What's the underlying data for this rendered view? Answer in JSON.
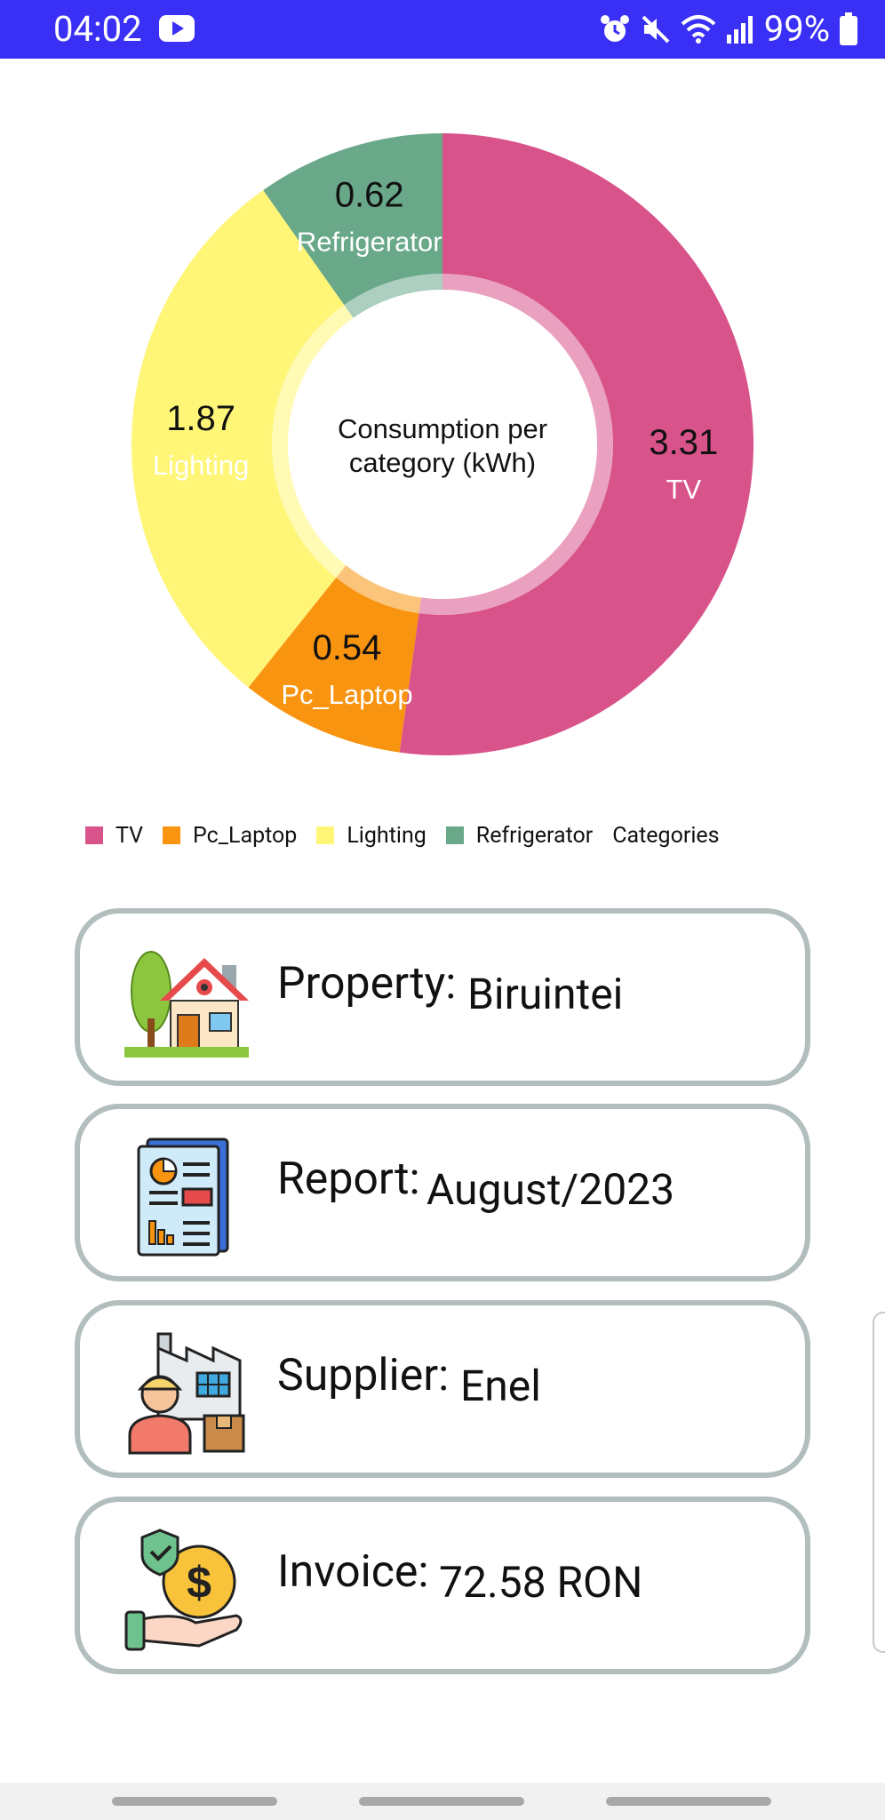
{
  "status_bar": {
    "time": "04:02",
    "battery": "99%",
    "icons": [
      "youtube-icon",
      "alarm-icon",
      "mute-icon",
      "wifi-icon",
      "signal-icon",
      "battery-icon"
    ],
    "background": "#3a30f5"
  },
  "chart_data": {
    "type": "pie",
    "center_text_lines": [
      "Consumption per",
      "category (kWh)"
    ],
    "slices": [
      {
        "label": "TV",
        "value": 3.31,
        "value_label": "3.31",
        "color": "#d9538b"
      },
      {
        "label": "Pc_Laptop",
        "value": 0.54,
        "value_label": "0.54",
        "color": "#f8940f"
      },
      {
        "label": "Lighting",
        "value": 1.87,
        "value_label": "1.87",
        "color": "#fff576"
      },
      {
        "label": "Refrigerator",
        "value": 0.62,
        "value_label": "0.62",
        "color": "#6aa88a"
      }
    ],
    "legend": {
      "items": [
        {
          "label": "TV",
          "color": "#d9538b"
        },
        {
          "label": "Pc_Laptop",
          "color": "#f8940f"
        },
        {
          "label": "Lighting",
          "color": "#fff576"
        },
        {
          "label": "Refrigerator",
          "color": "#6aa88a"
        }
      ],
      "title": "Categories",
      "placement": "bottom-left"
    }
  },
  "cards": [
    {
      "label": "Property:",
      "value": "Biruintei",
      "icon": "house-icon"
    },
    {
      "label": "Report:",
      "value": "August/2023",
      "icon": "report-document-icon"
    },
    {
      "label": "Supplier:",
      "value": "Enel",
      "icon": "supplier-factory-icon"
    },
    {
      "label": "Invoice:",
      "value": "72.58 RON",
      "icon": "money-hand-icon"
    }
  ]
}
